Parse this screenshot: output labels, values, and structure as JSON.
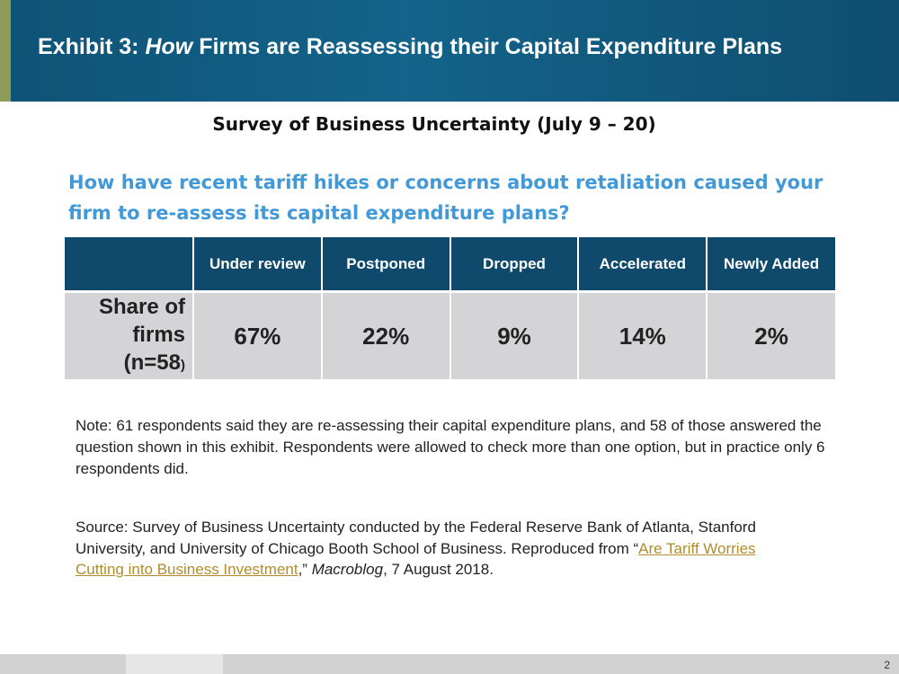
{
  "header": {
    "title_prefix": "Exhibit 3: ",
    "title_emph": "How",
    "title_rest": " Firms are Reassessing their Capital Expenditure Plans",
    "colors": {
      "banner": "#0e5376",
      "accent": "#8e9a55"
    }
  },
  "subtitle": "Survey of Business Uncertainty (July 9 – 20)",
  "question": "How have recent tariff hikes or concerns about retaliation caused your firm to re-assess its capital expenditure plans?",
  "table": {
    "columns": [
      "Under review",
      "Postponed",
      "Dropped",
      "Accelerated",
      "Newly Added"
    ],
    "row_label": {
      "line1": "Share of",
      "line2": "firms",
      "line3": "(n=58",
      "line3_tail": ")"
    },
    "values": [
      "67%",
      "22%",
      "9%",
      "14%",
      "2%"
    ],
    "colors": {
      "header": "#0f4a6c",
      "body": "#d4d4d6"
    }
  },
  "note": "Note: 61 respondents said they are re-assessing their capital expenditure plans, and 58 of those answered the question shown in this exhibit. Respondents were allowed to check more than one option, but in practice only 6 respondents did.",
  "source": {
    "prefix": "Source: Survey of Business Uncertainty conducted by the Federal Reserve Bank of Atlanta, Stanford University, and University of Chicago Booth School of Business. Reproduced from “",
    "link_text": "Are Tariff Worries Cutting into Business Investment",
    "mid": ",” ",
    "publication": "Macroblog",
    "suffix": ", 7 August 2018.",
    "link_color": "#b08c2a"
  },
  "footer": {
    "page_number": "2"
  }
}
